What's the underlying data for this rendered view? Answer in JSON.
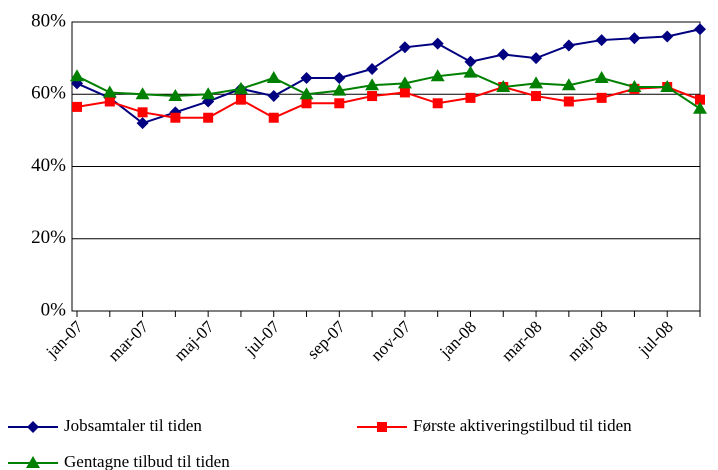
{
  "chart_data": {
    "type": "line",
    "categories": [
      "jan-07",
      null,
      "mar-07",
      null,
      "maj-07",
      null,
      "jul-07",
      null,
      "sep-07",
      null,
      "nov-07",
      null,
      "jan-08",
      null,
      "mar-08",
      null,
      "maj-08",
      null,
      "jul-08",
      null
    ],
    "series": [
      {
        "name": "Jobsamtaler til tiden",
        "color": "#000080",
        "marker": "diamond",
        "values": [
          63,
          59,
          52,
          55,
          58,
          61.5,
          59.5,
          64.5,
          64.5,
          67,
          73,
          74,
          69,
          71,
          70,
          73.5,
          75,
          75.5,
          76,
          78
        ]
      },
      {
        "name": "Første aktiveringstilbud til tiden",
        "color": "#ff0000",
        "marker": "square",
        "values": [
          56.5,
          58,
          55,
          53.5,
          53.5,
          58.5,
          53.5,
          57.5,
          57.5,
          59.5,
          60.5,
          57.5,
          59,
          62,
          59.5,
          58,
          59,
          61.5,
          62,
          58.5
        ]
      },
      {
        "name": "Gentagne tilbud til tiden",
        "color": "#008000",
        "marker": "triangle",
        "values": [
          65,
          60.5,
          60,
          59.5,
          60,
          61.5,
          64.5,
          60,
          61,
          62.5,
          63,
          65,
          66,
          62,
          63,
          62.5,
          64.5,
          62,
          62,
          56
        ]
      }
    ],
    "ylim": [
      0,
      80
    ],
    "yticks": [
      {
        "value": 0,
        "label": "0%"
      },
      {
        "value": 20,
        "label": "20%"
      },
      {
        "value": 40,
        "label": "40%"
      },
      {
        "value": 60,
        "label": "60%"
      },
      {
        "value": 80,
        "label": "80%"
      }
    ],
    "grid": true
  }
}
